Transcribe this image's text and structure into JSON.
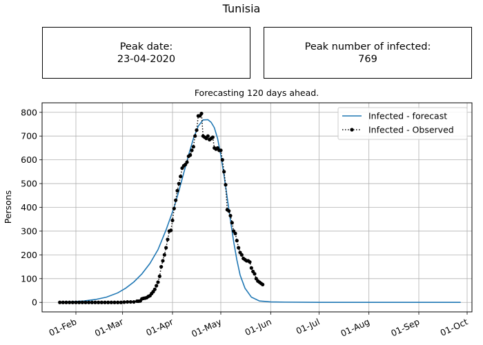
{
  "figure": {
    "title": "Tunisia",
    "peak_date_label": "Peak date:",
    "peak_date_value": "23-04-2020",
    "peak_infected_label": "Peak number of infected:",
    "peak_infected_value": "769",
    "subtitle": "Forecasting 120 days ahead."
  },
  "colors": {
    "forecast": "#1f77b4",
    "observed": "#000000",
    "grid": "#b0b0b0"
  },
  "chart_data": {
    "type": "line",
    "title": "Forecasting 120 days ahead.",
    "xlabel": "",
    "ylabel": "Persons",
    "x_type": "date",
    "xlim": [
      "2020-01-11",
      "2020-10-04"
    ],
    "ylim": [
      -40,
      840
    ],
    "x_ticks": [
      {
        "date": "2020-02-01",
        "label": "01-Feb"
      },
      {
        "date": "2020-03-01",
        "label": "01-Mar"
      },
      {
        "date": "2020-04-01",
        "label": "01-Apr"
      },
      {
        "date": "2020-05-01",
        "label": "01-May"
      },
      {
        "date": "2020-06-01",
        "label": "01-Jun"
      },
      {
        "date": "2020-07-01",
        "label": "01-Jul"
      },
      {
        "date": "2020-08-01",
        "label": "01-Aug"
      },
      {
        "date": "2020-09-01",
        "label": "01-Sep"
      },
      {
        "date": "2020-10-01",
        "label": "01-Oct"
      }
    ],
    "y_ticks": [
      0,
      100,
      200,
      300,
      400,
      500,
      600,
      700,
      800
    ],
    "grid": true,
    "legend_position": "top-right",
    "series": [
      {
        "name": "Infected - forecast",
        "style": "solid",
        "x": [
          "2020-01-22",
          "2020-01-30",
          "2020-02-06",
          "2020-02-13",
          "2020-02-20",
          "2020-02-27",
          "2020-03-03",
          "2020-03-08",
          "2020-03-13",
          "2020-03-18",
          "2020-03-23",
          "2020-03-28",
          "2020-04-02",
          "2020-04-05",
          "2020-04-08",
          "2020-04-11",
          "2020-04-14",
          "2020-04-17",
          "2020-04-20",
          "2020-04-23",
          "2020-04-25",
          "2020-04-27",
          "2020-04-29",
          "2020-05-01",
          "2020-05-03",
          "2020-05-05",
          "2020-05-07",
          "2020-05-09",
          "2020-05-11",
          "2020-05-13",
          "2020-05-16",
          "2020-05-20",
          "2020-05-25",
          "2020-06-01",
          "2020-06-10",
          "2020-07-01",
          "2020-08-01",
          "2020-09-01",
          "2020-09-27"
        ],
        "y": [
          1,
          3,
          6,
          12,
          22,
          40,
          60,
          86,
          120,
          164,
          222,
          305,
          400,
          470,
          545,
          620,
          690,
          742,
          768,
          769,
          758,
          735,
          690,
          620,
          535,
          440,
          345,
          255,
          178,
          115,
          60,
          22,
          6,
          2,
          1,
          0,
          0,
          0,
          0
        ]
      },
      {
        "name": "Infected - Observed",
        "style": "dotted-markers",
        "x": [
          "2020-01-22",
          "2020-01-24",
          "2020-01-26",
          "2020-01-28",
          "2020-01-30",
          "2020-02-01",
          "2020-02-03",
          "2020-02-05",
          "2020-02-07",
          "2020-02-09",
          "2020-02-11",
          "2020-02-13",
          "2020-02-15",
          "2020-02-17",
          "2020-02-19",
          "2020-02-21",
          "2020-02-23",
          "2020-02-25",
          "2020-02-27",
          "2020-02-29",
          "2020-03-02",
          "2020-03-04",
          "2020-03-06",
          "2020-03-08",
          "2020-03-10",
          "2020-03-11",
          "2020-03-12",
          "2020-03-13",
          "2020-03-14",
          "2020-03-15",
          "2020-03-16",
          "2020-03-17",
          "2020-03-18",
          "2020-03-19",
          "2020-03-20",
          "2020-03-21",
          "2020-03-22",
          "2020-03-23",
          "2020-03-24",
          "2020-03-25",
          "2020-03-26",
          "2020-03-27",
          "2020-03-28",
          "2020-03-29",
          "2020-03-30",
          "2020-03-31",
          "2020-04-01",
          "2020-04-02",
          "2020-04-03",
          "2020-04-04",
          "2020-04-05",
          "2020-04-06",
          "2020-04-07",
          "2020-04-08",
          "2020-04-09",
          "2020-04-10",
          "2020-04-11",
          "2020-04-12",
          "2020-04-13",
          "2020-04-14",
          "2020-04-15",
          "2020-04-16",
          "2020-04-17",
          "2020-04-18",
          "2020-04-19",
          "2020-04-20",
          "2020-04-21",
          "2020-04-22",
          "2020-04-23",
          "2020-04-24",
          "2020-04-25",
          "2020-04-26",
          "2020-04-27",
          "2020-04-28",
          "2020-04-29",
          "2020-04-30",
          "2020-05-01",
          "2020-05-02",
          "2020-05-03",
          "2020-05-04",
          "2020-05-05",
          "2020-05-06",
          "2020-05-07",
          "2020-05-08",
          "2020-05-09",
          "2020-05-10",
          "2020-05-11",
          "2020-05-12",
          "2020-05-13",
          "2020-05-14",
          "2020-05-15",
          "2020-05-16",
          "2020-05-17",
          "2020-05-18",
          "2020-05-19",
          "2020-05-20",
          "2020-05-21",
          "2020-05-22",
          "2020-05-23",
          "2020-05-24",
          "2020-05-25",
          "2020-05-26",
          "2020-05-27"
        ],
        "y": [
          0,
          0,
          0,
          0,
          0,
          0,
          0,
          0,
          0,
          0,
          0,
          0,
          0,
          0,
          0,
          0,
          0,
          0,
          0,
          0,
          1,
          2,
          2,
          2,
          5,
          5,
          6,
          15,
          17,
          18,
          20,
          25,
          28,
          37,
          45,
          55,
          70,
          85,
          110,
          150,
          175,
          200,
          230,
          265,
          300,
          303,
          345,
          395,
          430,
          470,
          500,
          530,
          565,
          575,
          580,
          590,
          615,
          620,
          640,
          655,
          700,
          725,
          785,
          785,
          795,
          700,
          695,
          690,
          700,
          685,
          690,
          695,
          650,
          645,
          650,
          640,
          640,
          600,
          550,
          495,
          390,
          385,
          365,
          335,
          300,
          290,
          260,
          230,
          210,
          200,
          185,
          180,
          175,
          175,
          170,
          145,
          130,
          120,
          100,
          90,
          85,
          80,
          75
        ]
      }
    ]
  }
}
